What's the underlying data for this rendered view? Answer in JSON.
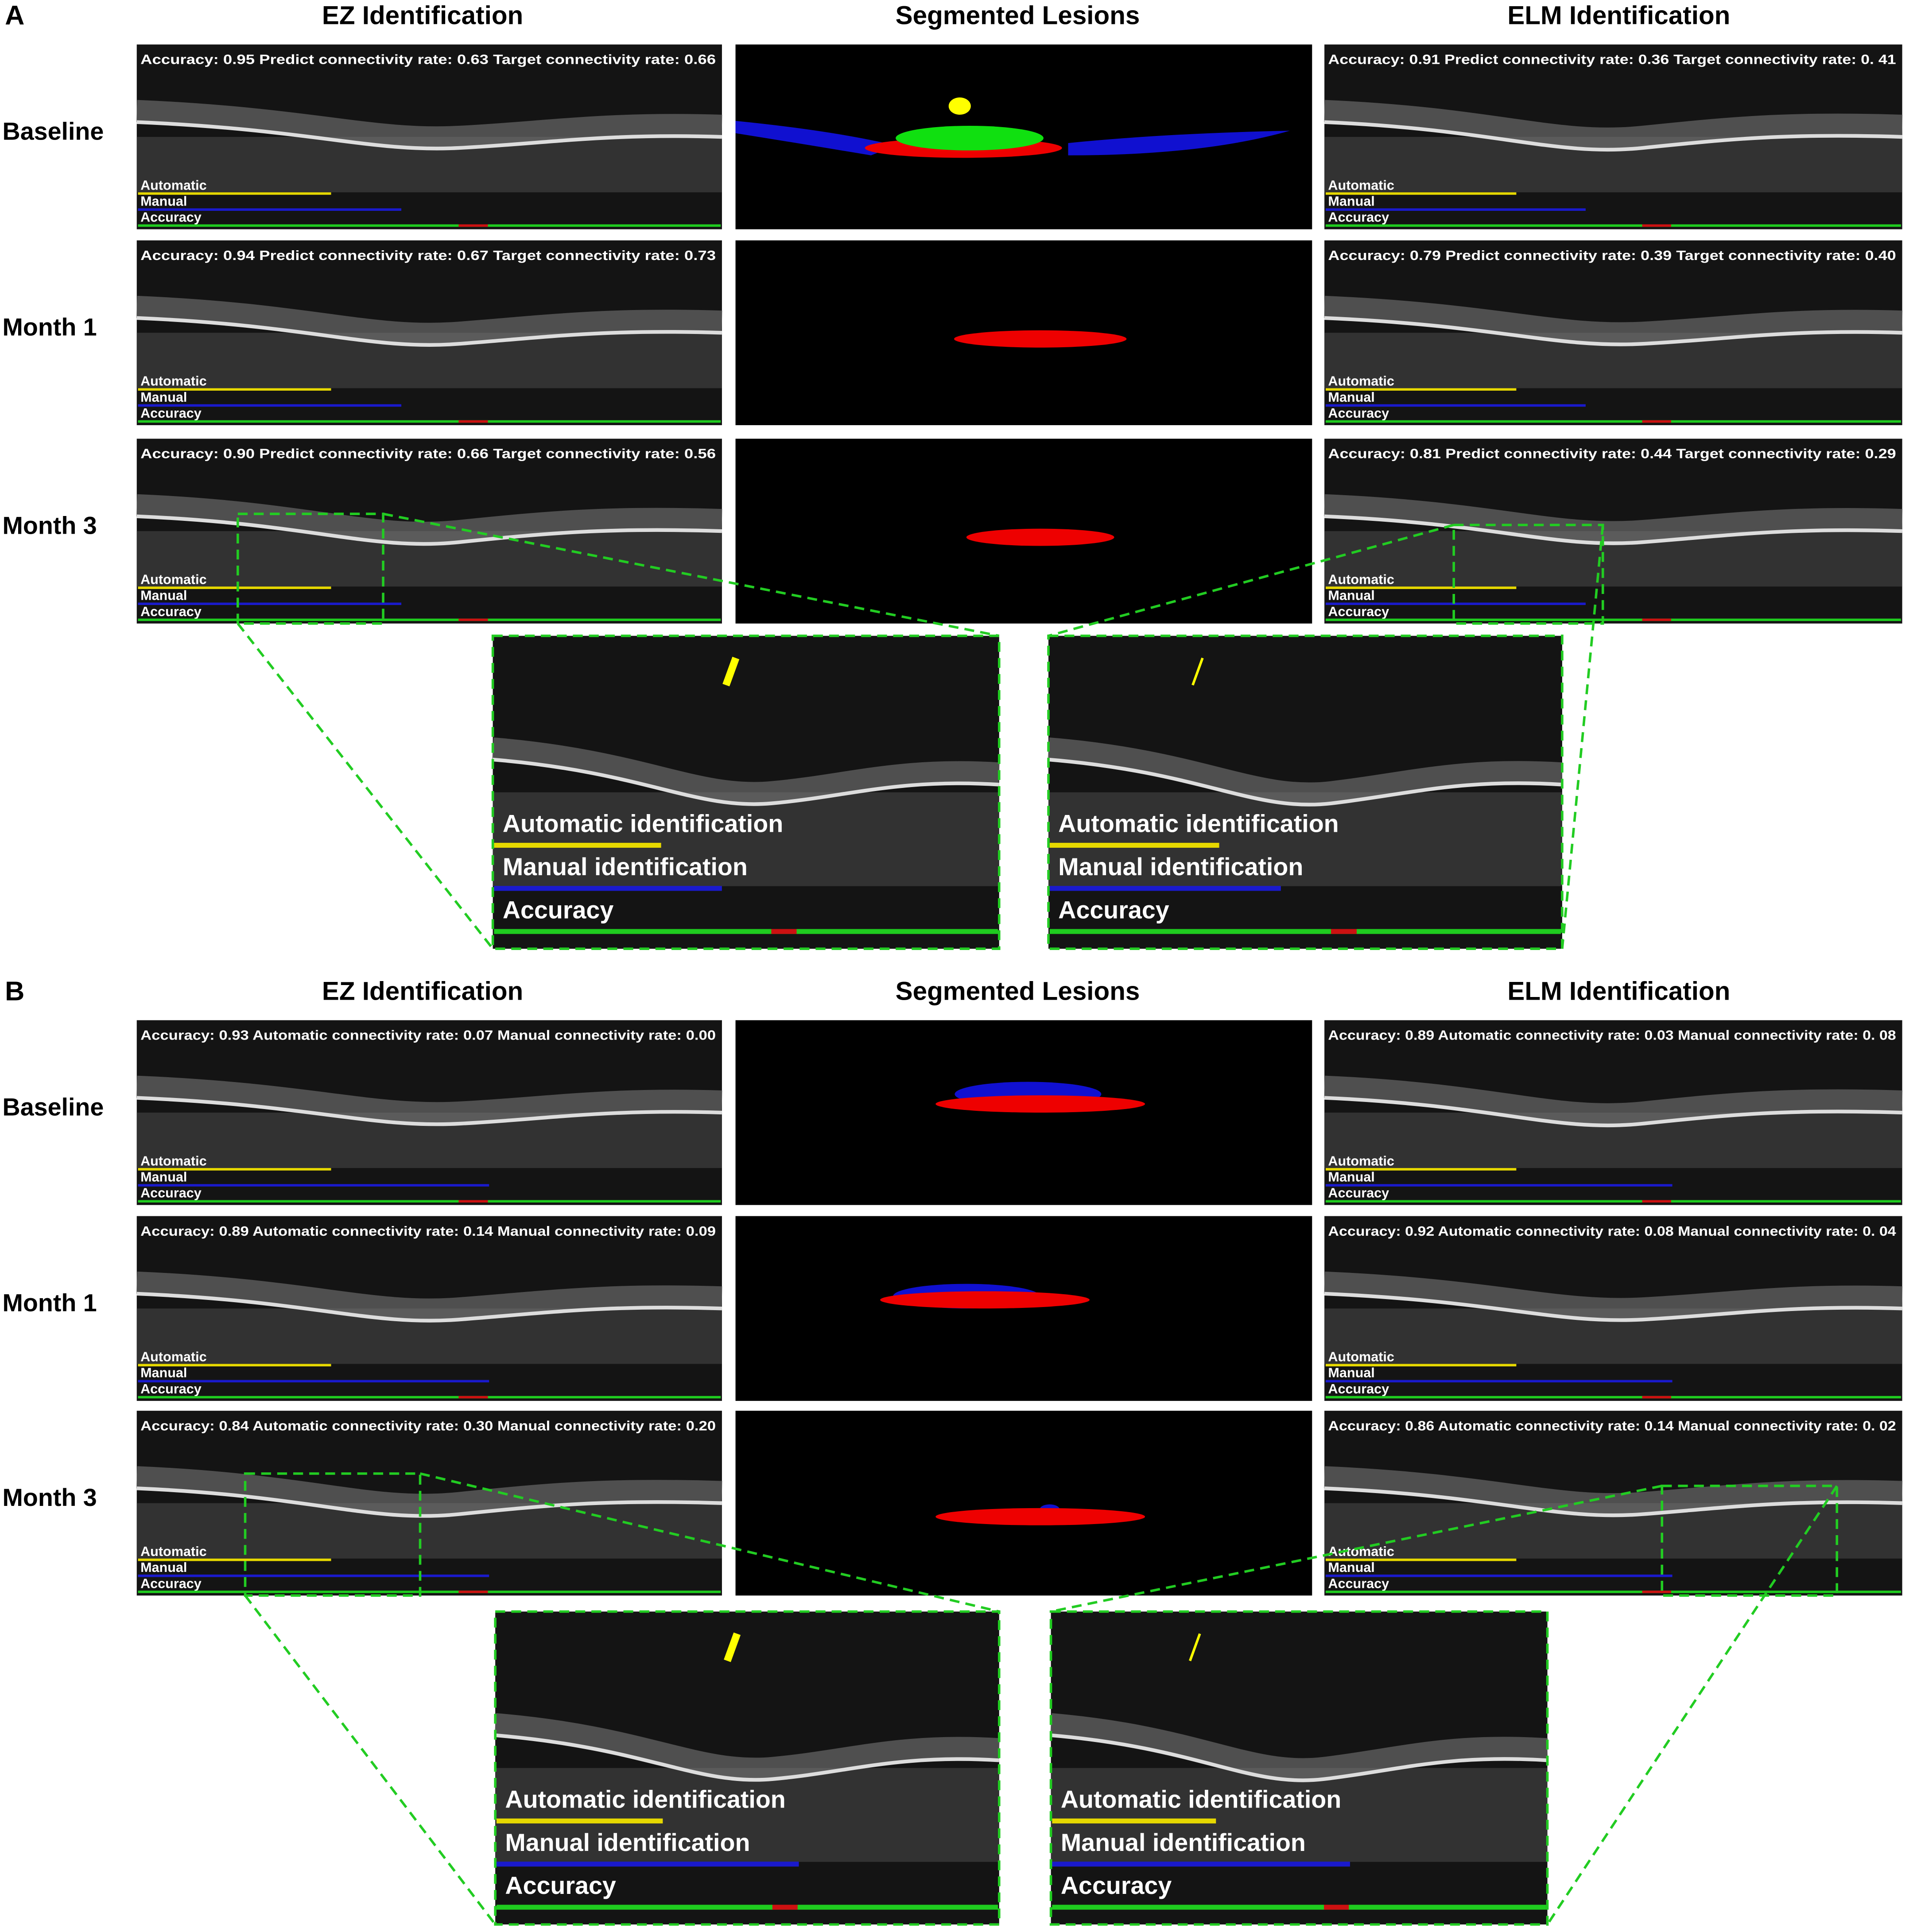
{
  "panels": [
    {
      "label": "A",
      "columns": [
        "EZ Identification",
        "Segmented Lesions",
        "ELM Identification"
      ],
      "rows": [
        {
          "label": "Baseline",
          "ez": "Accuracy: 0.95 Predict connectivity rate: 0.63 Target connectivity rate: 0.66",
          "elm": "Accuracy: 0.91 Predict connectivity rate: 0.36 Target connectivity rate: 0. 41"
        },
        {
          "label": "Month 1",
          "ez": "Accuracy: 0.94 Predict connectivity rate: 0.67 Target connectivity rate: 0.73",
          "elm": "Accuracy: 0.79 Predict connectivity rate: 0.39 Target connectivity rate: 0.40"
        },
        {
          "label": "Month 3",
          "ez": "Accuracy: 0.90 Predict connectivity rate: 0.66 Target connectivity rate: 0.56",
          "elm": "Accuracy: 0.81 Predict connectivity rate: 0.44 Target connectivity rate: 0.29"
        }
      ],
      "track_labels": [
        "Automatic",
        "Manual",
        "Accuracy"
      ],
      "zoom_labels": [
        "Automatic identification",
        "Manual identification",
        "Accuracy"
      ]
    },
    {
      "label": "B",
      "columns": [
        "EZ Identification",
        "Segmented Lesions",
        "ELM Identification"
      ],
      "rows": [
        {
          "label": "Baseline",
          "ez": "Accuracy: 0.93 Automatic connectivity rate: 0.07 Manual connectivity rate: 0.00",
          "elm": "Accuracy: 0.89 Automatic connectivity rate: 0.03 Manual connectivity rate: 0. 08"
        },
        {
          "label": "Month 1",
          "ez": "Accuracy: 0.89 Automatic connectivity rate: 0.14 Manual connectivity rate: 0.09",
          "elm": "Accuracy: 0.92 Automatic connectivity rate: 0.08 Manual connectivity rate: 0. 04"
        },
        {
          "label": "Month 3",
          "ez": "Accuracy: 0.84 Automatic connectivity rate: 0.30 Manual connectivity rate: 0.20",
          "elm": "Accuracy: 0.86 Automatic connectivity rate: 0.14 Manual connectivity rate: 0. 02"
        }
      ],
      "track_labels": [
        "Automatic",
        "Manual",
        "Accuracy"
      ],
      "zoom_labels": [
        "Automatic identification",
        "Manual identification",
        "Accuracy"
      ]
    }
  ]
}
